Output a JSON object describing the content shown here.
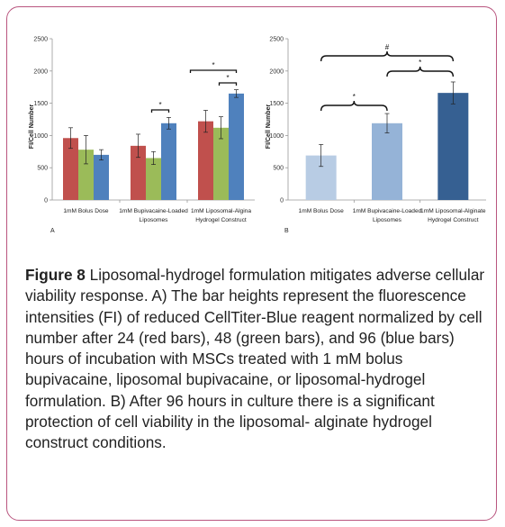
{
  "caption": {
    "figure_label": "Figure 8",
    "text": " Liposomal-hydrogel formulation mitigates adverse cellular viability response. A) The bar heights represent the fluorescence intensities (FI) of reduced CellTiter-Blue reagent normalized by cell number after 24 (red bars), 48 (green bars), and 96 (blue bars) hours of incubation with MSCs treated with 1 mM bolus bupivacaine, liposomal bupivacaine, or liposomal-hydrogel formulation. B) After 96 hours in culture there is a significant protection of cell viability in the liposomal- alginate hydrogel construct conditions."
  },
  "colors": {
    "red": "#c0504d",
    "green": "#9bbb59",
    "blue": "#4f81bd",
    "b_light": "#b8cce4",
    "b_mid": "#95b3d7",
    "b_dark": "#366092",
    "frame": "#b9567f"
  },
  "chart_data": [
    {
      "panel": "A",
      "type": "bar",
      "ylabel": "FI/Cell Number",
      "ylim": [
        0,
        2500
      ],
      "yticks": [
        0,
        500,
        1000,
        1500,
        2000,
        2500
      ],
      "categories": [
        [
          "1mM Bolus Dose"
        ],
        [
          "1mM Bupivacaine-Loaded",
          "Liposomes"
        ],
        [
          "1mM Liposomal-Algina",
          "Hydrogel Construct"
        ]
      ],
      "series": [
        {
          "values": [
            960,
            840,
            1220
          ],
          "errors": [
            160,
            180,
            170
          ],
          "color": "red"
        },
        {
          "values": [
            780,
            650,
            1120
          ],
          "errors": [
            220,
            100,
            170
          ],
          "color": "green"
        },
        {
          "values": [
            700,
            1190,
            1650
          ],
          "errors": [
            80,
            90,
            60
          ],
          "color": "blue"
        }
      ],
      "significance": [
        "*",
        "*",
        "*"
      ]
    },
    {
      "panel": "B",
      "type": "bar",
      "ylabel": "FI/Cell Number",
      "ylim": [
        0,
        2500
      ],
      "yticks": [
        0,
        500,
        1000,
        1500,
        2000,
        2500
      ],
      "categories": [
        [
          "1mM Bolus Dose"
        ],
        [
          "1mM Bupivacaine-Loaded",
          "Liposomes"
        ],
        [
          "1mM Liposomal-Alginate",
          "Hydrogel Construct"
        ]
      ],
      "values": [
        690,
        1190,
        1660
      ],
      "errors": [
        170,
        150,
        170
      ],
      "colors": [
        "b_light",
        "b_mid",
        "b_dark"
      ],
      "significance": [
        "#",
        "*",
        "*"
      ]
    }
  ]
}
